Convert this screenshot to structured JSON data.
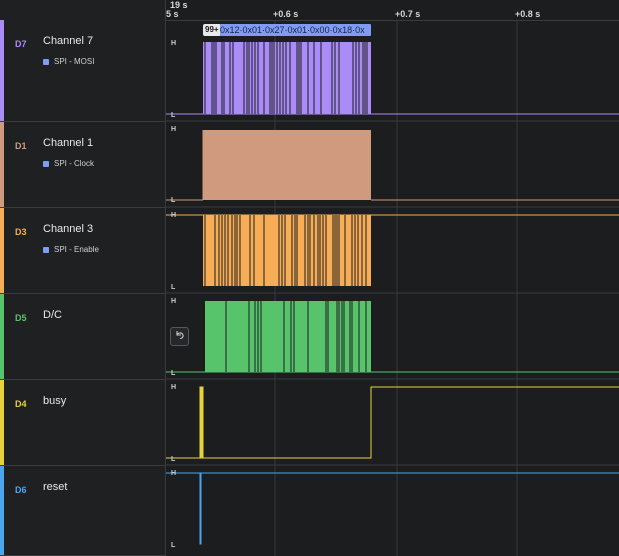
{
  "timeline": {
    "origin_label": "19 s",
    "origin_sub_label": "5 s",
    "ticks": [
      "+0.6 s",
      "+0.7 s",
      "+0.8 s"
    ]
  },
  "channels": [
    {
      "id": "D7",
      "name": "Channel 7",
      "analyzer": "SPI - MOSI",
      "color": "#a98cf5"
    },
    {
      "id": "D1",
      "name": "Channel 1",
      "analyzer": "SPI - Clock",
      "color": "#cf9a7e"
    },
    {
      "id": "D3",
      "name": "Channel 3",
      "analyzer": "SPI - Enable",
      "color": "#f7ad55"
    },
    {
      "id": "D5",
      "name": "D/C",
      "analyzer": "",
      "color": "#57c46c"
    },
    {
      "id": "D4",
      "name": "busy",
      "analyzer": "",
      "color": "#e7d23e"
    },
    {
      "id": "D6",
      "name": "reset",
      "analyzer": "",
      "color": "#4aa7ee"
    }
  ],
  "levels": {
    "high": "H",
    "low": "L"
  },
  "protocol": {
    "badge": "99+",
    "bytes": "0x12·0x01·0x27·0x01·0x00·0x18·0x"
  },
  "undo_icon": "undo-icon"
}
